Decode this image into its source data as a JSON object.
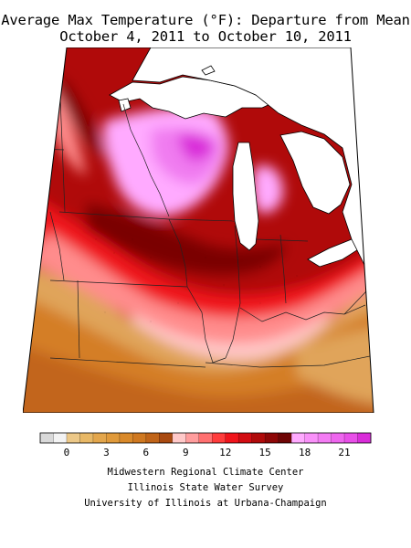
{
  "title": {
    "line1": "Average Max Temperature (°F): Departure from Mean",
    "line2": "October 4, 2011 to October 10, 2011"
  },
  "legend": {
    "colors": [
      "#d9d9d9",
      "#f3f3f3",
      "#ecc888",
      "#e8b866",
      "#e3a64c",
      "#e09a3b",
      "#d9892a",
      "#cf7820",
      "#c06418",
      "#a94a10",
      "#ffc9c9",
      "#ff9d9d",
      "#ff7070",
      "#ff3c3c",
      "#f0141b",
      "#d20c12",
      "#b00a0a",
      "#8e0707",
      "#6e0505",
      "#ffaaff",
      "#f991f9",
      "#f47cf4",
      "#ee66ee",
      "#e84fe8",
      "#d92cd9"
    ],
    "ticks": [
      {
        "value": 0,
        "label": "0"
      },
      {
        "value": 3,
        "label": "3"
      },
      {
        "value": 6,
        "label": "6"
      },
      {
        "value": 9,
        "label": "9"
      },
      {
        "value": 12,
        "label": "12"
      },
      {
        "value": 15,
        "label": "15"
      },
      {
        "value": 18,
        "label": "18"
      },
      {
        "value": 21,
        "label": "21"
      }
    ],
    "min": -1.5,
    "step": 1
  },
  "credits": {
    "line1": "Midwestern Regional Climate Center",
    "line2": "Illinois State Water Survey",
    "line3": "University of Illinois at Urbana-Champaign"
  },
  "map": {
    "colors": {
      "tan": "#e0a45a",
      "orange": "#d47e26",
      "dark_orange": "#c2651a",
      "pale_pink": "#ffc8c8",
      "pink": "#ff8c8c",
      "red": "#f0141b",
      "dark_red": "#b00a0a",
      "maroon": "#7a0606",
      "light_magenta": "#ffaaff",
      "magenta": "#f07cf0",
      "deep_magenta": "#d92cd9",
      "lake": "#ffffff",
      "outside": "#ffffff"
    }
  }
}
